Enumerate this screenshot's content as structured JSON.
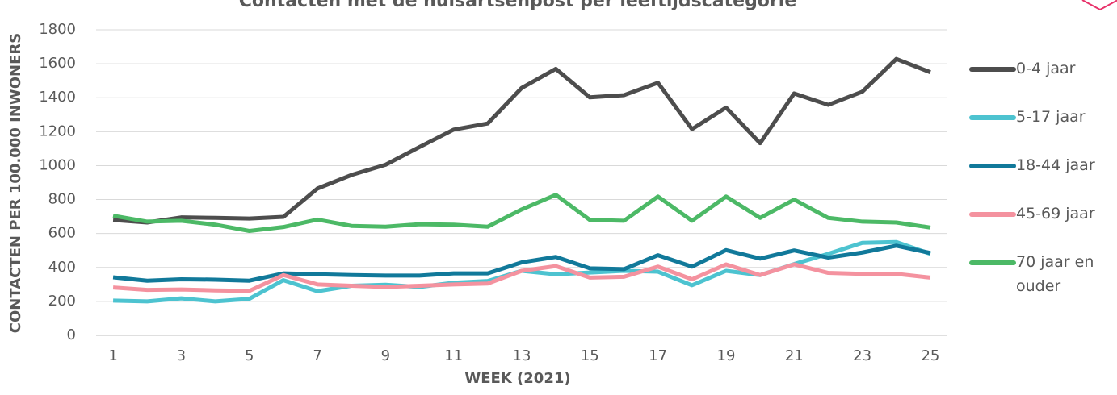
{
  "chart_data": {
    "type": "line",
    "title": "Contacten met de huisartsenpost per leeftijdscategorie",
    "x_label": "WEEK (2021)",
    "y_label": "CONTACTEN PER 100.000 INWONERS",
    "x": [
      1,
      2,
      3,
      4,
      5,
      6,
      7,
      8,
      9,
      10,
      11,
      12,
      13,
      14,
      15,
      16,
      17,
      18,
      19,
      20,
      21,
      22,
      23,
      24,
      25
    ],
    "series": [
      {
        "name": "0-4 jaar",
        "color": "#4d4d4d",
        "values": [
          680,
          665,
          695,
          692,
          688,
          698,
          865,
          945,
          1005,
          1110,
          1212,
          1248,
          1458,
          1570,
          1402,
          1415,
          1488,
          1215,
          1342,
          1132,
          1425,
          1358,
          1435,
          1628,
          1550
        ]
      },
      {
        "name": "5-17 jaar",
        "color": "#4dc3d0",
        "values": [
          205,
          200,
          218,
          200,
          215,
          325,
          260,
          292,
          298,
          285,
          310,
          320,
          380,
          360,
          370,
          380,
          375,
          295,
          380,
          355,
          420,
          480,
          545,
          550,
          480
        ]
      },
      {
        "name": "18-44 jaar",
        "color": "#11799a",
        "values": [
          342,
          322,
          330,
          328,
          322,
          365,
          360,
          355,
          352,
          352,
          365,
          365,
          430,
          462,
          395,
          390,
          472,
          405,
          502,
          452,
          500,
          458,
          488,
          528,
          485
        ]
      },
      {
        "name": "45-69 jaar",
        "color": "#f4929f",
        "values": [
          282,
          268,
          270,
          265,
          262,
          355,
          300,
          292,
          285,
          292,
          300,
          305,
          380,
          408,
          340,
          345,
          405,
          330,
          418,
          355,
          418,
          368,
          362,
          362,
          340
        ]
      },
      {
        "name": "70 jaar en ouder",
        "color": "#4cb966",
        "values": [
          705,
          670,
          675,
          652,
          615,
          638,
          682,
          645,
          640,
          655,
          652,
          640,
          742,
          828,
          680,
          675,
          818,
          675,
          818,
          692,
          800,
          692,
          670,
          665,
          635
        ]
      }
    ],
    "xlim": [
      0.5,
      25.5
    ],
    "xticks": [
      1,
      3,
      5,
      7,
      9,
      11,
      13,
      15,
      17,
      19,
      21,
      23,
      25
    ],
    "ylim": [
      0,
      1800
    ],
    "yticks": [
      0,
      200,
      400,
      600,
      800,
      1000,
      1200,
      1400,
      1600,
      1800
    ],
    "grid": true,
    "legend": "right"
  }
}
